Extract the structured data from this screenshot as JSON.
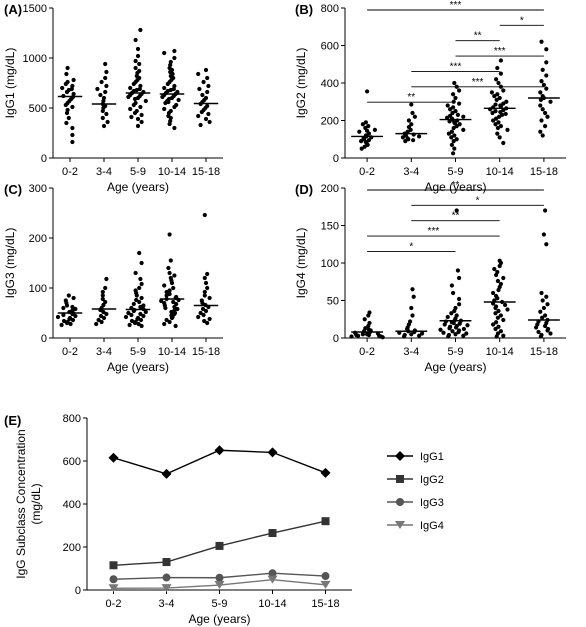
{
  "chart_data": [
    {
      "panel": "(A)",
      "type": "scatter",
      "ylabel": "IgG1 (mg/dL)",
      "xlabel": "Age (years)",
      "categories": [
        "0-2",
        "3-4",
        "5-9",
        "10-14",
        "15-18"
      ],
      "ylim": [
        0,
        1500
      ],
      "yticks": [
        0,
        500,
        1000,
        1500
      ],
      "medians": [
        615,
        540,
        650,
        640,
        545
      ],
      "points": [
        [
          900,
          840,
          780,
          760,
          740,
          720,
          700,
          690,
          680,
          660,
          640,
          620,
          610,
          590,
          570,
          550,
          530,
          510,
          480,
          450,
          400,
          350,
          300,
          230,
          160
        ],
        [
          940,
          860,
          800,
          760,
          720,
          690,
          660,
          630,
          600,
          570,
          540,
          520,
          500,
          470,
          440,
          400,
          360,
          320
        ],
        [
          1280,
          1180,
          1090,
          1020,
          970,
          940,
          900,
          870,
          850,
          820,
          800,
          780,
          760,
          740,
          720,
          700,
          690,
          680,
          670,
          660,
          650,
          640,
          630,
          620,
          610,
          600,
          590,
          570,
          550,
          530,
          510,
          490,
          470,
          450,
          430,
          410,
          390,
          360,
          320
        ],
        [
          1070,
          1050,
          1000,
          960,
          930,
          900,
          880,
          860,
          840,
          820,
          800,
          780,
          760,
          740,
          720,
          700,
          690,
          680,
          670,
          660,
          650,
          640,
          630,
          620,
          610,
          600,
          590,
          580,
          570,
          560,
          550,
          530,
          510,
          490,
          470,
          450,
          420,
          400,
          370,
          340,
          300
        ],
        [
          880,
          840,
          800,
          760,
          720,
          690,
          660,
          630,
          600,
          580,
          560,
          540,
          520,
          500,
          480,
          460,
          440,
          420,
          390,
          360,
          330
        ]
      ]
    },
    {
      "panel": "(B)",
      "type": "scatter",
      "ylabel": "IgG2 (mg/dL)",
      "xlabel": "Age (years)",
      "categories": [
        "0-2",
        "3-4",
        "5-9",
        "10-14",
        "15-18"
      ],
      "ylim": [
        0,
        800
      ],
      "yticks": [
        0,
        200,
        400,
        600,
        800
      ],
      "medians": [
        115,
        130,
        205,
        265,
        320
      ],
      "points": [
        [
          355,
          190,
          180,
          170,
          160,
          150,
          145,
          140,
          130,
          120,
          115,
          110,
          105,
          100,
          95,
          90,
          85,
          80,
          70,
          60,
          50
        ],
        [
          285,
          240,
          220,
          200,
          180,
          165,
          150,
          140,
          130,
          125,
          120,
          115,
          110,
          105,
          100,
          95,
          90
        ],
        [
          400,
          380,
          360,
          340,
          320,
          300,
          290,
          280,
          270,
          260,
          250,
          240,
          230,
          225,
          220,
          215,
          210,
          205,
          200,
          195,
          190,
          185,
          180,
          170,
          160,
          150,
          140,
          130,
          120,
          110,
          100,
          90,
          70,
          50,
          25
        ],
        [
          520,
          480,
          450,
          420,
          400,
          380,
          360,
          350,
          340,
          330,
          320,
          310,
          300,
          290,
          285,
          280,
          275,
          270,
          265,
          260,
          255,
          250,
          245,
          240,
          235,
          230,
          220,
          210,
          200,
          190,
          180,
          170,
          160,
          150,
          130,
          110,
          80
        ],
        [
          620,
          580,
          510,
          470,
          440,
          410,
          390,
          370,
          350,
          330,
          320,
          310,
          300,
          280,
          260,
          240,
          220,
          200,
          170,
          140,
          120
        ]
      ],
      "significance": [
        {
          "label": "***",
          "from": "0-2",
          "to": "15-18"
        },
        {
          "label": "*",
          "from": "10-14",
          "to": "15-18"
        },
        {
          "label": "**",
          "from": "5-9",
          "to": "10-14"
        },
        {
          "label": "***",
          "from": "5-9",
          "to": "15-18"
        },
        {
          "label": "***",
          "from": "3-4",
          "to": "10-14"
        },
        {
          "label": "***",
          "from": "3-4",
          "to": "15-18"
        },
        {
          "label": "**",
          "from": "0-2",
          "to": "5-9"
        }
      ]
    },
    {
      "panel": "(C)",
      "type": "scatter",
      "ylabel": "IgG3 (mg/dL)",
      "xlabel": "Age (years)",
      "categories": [
        "0-2",
        "3-4",
        "5-9",
        "10-14",
        "15-18"
      ],
      "ylim": [
        0,
        300
      ],
      "yticks": [
        0,
        100,
        200,
        300
      ],
      "medians": [
        50,
        58,
        57,
        78,
        65
      ],
      "points": [
        [
          85,
          80,
          75,
          70,
          65,
          62,
          60,
          58,
          55,
          52,
          50,
          48,
          46,
          44,
          42,
          40,
          38,
          36,
          34,
          32,
          30,
          28,
          26
        ],
        [
          118,
          100,
          92,
          85,
          78,
          72,
          66,
          60,
          56,
          52,
          48,
          44,
          40,
          36,
          32,
          28
        ],
        [
          170,
          150,
          130,
          118,
          108,
          100,
          95,
          90,
          85,
          80,
          76,
          72,
          68,
          65,
          62,
          60,
          58,
          56,
          54,
          52,
          50,
          48,
          46,
          44,
          42,
          40,
          38,
          36,
          34,
          32,
          30,
          28,
          26,
          24
        ],
        [
          207,
          155,
          140,
          130,
          125,
          120,
          115,
          110,
          105,
          100,
          95,
          92,
          88,
          85,
          82,
          80,
          78,
          76,
          74,
          72,
          70,
          68,
          65,
          62,
          60,
          58,
          55,
          52,
          50,
          48,
          45,
          42,
          40,
          36,
          32,
          28,
          24
        ],
        [
          246,
          128,
          120,
          110,
          100,
          92,
          85,
          80,
          75,
          70,
          66,
          62,
          58,
          54,
          50,
          46,
          42,
          38,
          34,
          30
        ]
      ]
    },
    {
      "panel": "(D)",
      "type": "scatter",
      "ylabel": "IgG4 (mg/dL)",
      "xlabel": "Age (years)",
      "categories": [
        "0-2",
        "3-4",
        "5-9",
        "10-14",
        "15-18"
      ],
      "ylim": [
        0,
        200
      ],
      "yticks": [
        0,
        50,
        100,
        150,
        200
      ],
      "medians": [
        8,
        9,
        23,
        48,
        24
      ],
      "points": [
        [
          34,
          30,
          25,
          20,
          16,
          13,
          11,
          10,
          9,
          8,
          7,
          6,
          5,
          5,
          4,
          4,
          3,
          3,
          2,
          2,
          1
        ],
        [
          65,
          55,
          40,
          30,
          22,
          18,
          14,
          12,
          10,
          9,
          8,
          7,
          6,
          5,
          4,
          3,
          2
        ],
        [
          170,
          90,
          80,
          70,
          60,
          52,
          45,
          40,
          36,
          33,
          30,
          28,
          26,
          24,
          23,
          22,
          21,
          20,
          19,
          18,
          17,
          16,
          15,
          14,
          13,
          12,
          11,
          10,
          9,
          8,
          7,
          6,
          5,
          4,
          3,
          2
        ],
        [
          103,
          100,
          96,
          92,
          88,
          84,
          80,
          76,
          72,
          68,
          64,
          60,
          56,
          53,
          50,
          48,
          46,
          44,
          42,
          40,
          38,
          36,
          33,
          30,
          27,
          24,
          21,
          18,
          15,
          12,
          9,
          6,
          3,
          2
        ],
        [
          170,
          138,
          125,
          60,
          55,
          50,
          45,
          40,
          35,
          30,
          27,
          24,
          22,
          20,
          18,
          16,
          14,
          12,
          10,
          8,
          6,
          4,
          2
        ]
      ],
      "significance": [
        {
          "label": "**",
          "from": "0-2",
          "to": "15-18"
        },
        {
          "label": "*",
          "from": "3-4",
          "to": "15-18"
        },
        {
          "label": "**",
          "from": "3-4",
          "to": "10-14"
        },
        {
          "label": "***",
          "from": "0-2",
          "to": "10-14"
        },
        {
          "label": "*",
          "from": "0-2",
          "to": "5-9"
        }
      ]
    },
    {
      "panel": "(E)",
      "type": "line",
      "ylabel": "IgG Subclass Concentration (mg/dL)",
      "xlabel": "Age (years)",
      "categories": [
        "0-2",
        "3-4",
        "5-9",
        "10-14",
        "15-18"
      ],
      "ylim": [
        0,
        800
      ],
      "yticks": [
        0,
        200,
        400,
        600,
        800
      ],
      "legend_position": "right",
      "series": [
        {
          "name": "IgG1",
          "marker": "diamond",
          "values": [
            615,
            540,
            650,
            640,
            545
          ]
        },
        {
          "name": "IgG2",
          "marker": "square",
          "values": [
            115,
            130,
            205,
            265,
            320
          ]
        },
        {
          "name": "IgG3",
          "marker": "circle",
          "values": [
            50,
            58,
            57,
            78,
            65
          ]
        },
        {
          "name": "IgG4",
          "marker": "triangle-down",
          "values": [
            8,
            9,
            23,
            48,
            24
          ]
        }
      ]
    }
  ]
}
